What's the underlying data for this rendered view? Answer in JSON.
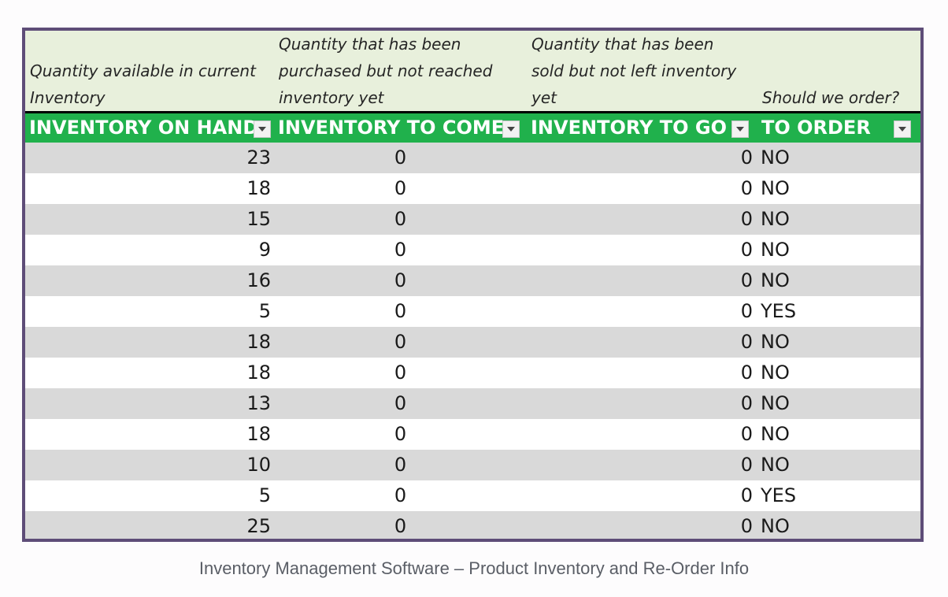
{
  "descriptions": {
    "col1": "Quantity available in current Inventory",
    "col2": "Quantity that has been purchased but not reached inventory yet",
    "col3": "Quantity that has been sold but not left inventory yet",
    "col4": "Should we order?"
  },
  "headers": {
    "col1": "INVENTORY ON HAND",
    "col2": "INVENTORY TO COME",
    "col3": "INVENTORY TO GO",
    "col4": "TO ORDER"
  },
  "rows": [
    {
      "on_hand": "23",
      "to_come": "0",
      "to_go": "0",
      "to_order": "NO"
    },
    {
      "on_hand": "18",
      "to_come": "0",
      "to_go": "0",
      "to_order": "NO"
    },
    {
      "on_hand": "15",
      "to_come": "0",
      "to_go": "0",
      "to_order": "NO"
    },
    {
      "on_hand": "9",
      "to_come": "0",
      "to_go": "0",
      "to_order": "NO"
    },
    {
      "on_hand": "16",
      "to_come": "0",
      "to_go": "0",
      "to_order": "NO"
    },
    {
      "on_hand": "5",
      "to_come": "0",
      "to_go": "0",
      "to_order": "YES"
    },
    {
      "on_hand": "18",
      "to_come": "0",
      "to_go": "0",
      "to_order": "NO"
    },
    {
      "on_hand": "18",
      "to_come": "0",
      "to_go": "0",
      "to_order": "NO"
    },
    {
      "on_hand": "13",
      "to_come": "0",
      "to_go": "0",
      "to_order": "NO"
    },
    {
      "on_hand": "18",
      "to_come": "0",
      "to_go": "0",
      "to_order": "NO"
    },
    {
      "on_hand": "10",
      "to_come": "0",
      "to_go": "0",
      "to_order": "NO"
    },
    {
      "on_hand": "5",
      "to_come": "0",
      "to_go": "0",
      "to_order": "YES"
    },
    {
      "on_hand": "25",
      "to_come": "0",
      "to_go": "0",
      "to_order": "NO"
    }
  ],
  "caption": "Inventory Management Software – Product Inventory and Re-Order Info",
  "colors": {
    "header_green": "#20b14c",
    "description_bg": "#e8f0dc",
    "border_purple": "#5e4d78",
    "band_gray": "#d9d9d9"
  }
}
